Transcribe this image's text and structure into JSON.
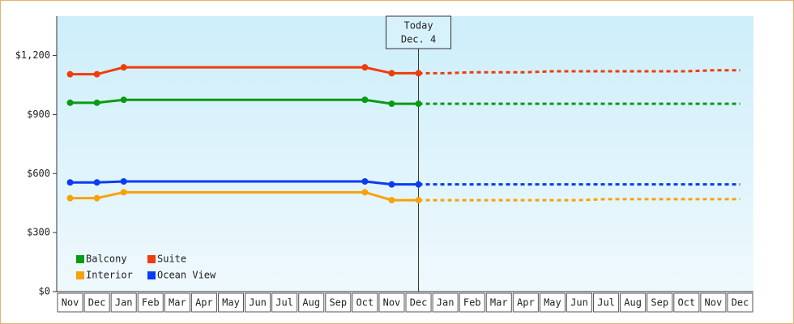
{
  "chart_data": {
    "type": "line",
    "annotation": [
      "Today",
      "Dec. 4"
    ],
    "categories": [
      "Nov",
      "Dec",
      "Jan",
      "Feb",
      "Mar",
      "Apr",
      "May",
      "Jun",
      "Jul",
      "Aug",
      "Sep",
      "Oct",
      "Nov",
      "Dec",
      "Jan",
      "Feb",
      "Mar",
      "Apr",
      "May",
      "Jun",
      "Jul",
      "Aug",
      "Sep",
      "Oct",
      "Nov",
      "Dec"
    ],
    "series": [
      {
        "name": "Balcony",
        "color": "#0a9a14",
        "values": [
          960,
          960,
          975,
          975,
          975,
          975,
          975,
          975,
          975,
          975,
          975,
          975,
          955,
          955,
          null,
          null,
          null,
          null,
          null,
          null,
          null,
          null,
          null,
          null,
          null,
          null
        ],
        "forecast": [
          null,
          null,
          null,
          null,
          null,
          null,
          null,
          null,
          null,
          null,
          null,
          null,
          null,
          955,
          955,
          955,
          955,
          955,
          955,
          955,
          955,
          955,
          955,
          955,
          955,
          955
        ]
      },
      {
        "name": "Suite",
        "color": "#f03c0a",
        "values": [
          1105,
          1105,
          1140,
          1140,
          1140,
          1140,
          1140,
          1140,
          1140,
          1140,
          1140,
          1140,
          1110,
          1110,
          null,
          null,
          null,
          null,
          null,
          null,
          null,
          null,
          null,
          null,
          null,
          null
        ],
        "forecast": [
          null,
          null,
          null,
          null,
          null,
          null,
          null,
          null,
          null,
          null,
          null,
          null,
          null,
          1110,
          1110,
          1115,
          1115,
          1115,
          1120,
          1120,
          1120,
          1120,
          1120,
          1120,
          1125,
          1125
        ]
      },
      {
        "name": "Interior",
        "color": "#f8a20a",
        "values": [
          475,
          475,
          505,
          505,
          505,
          505,
          505,
          505,
          505,
          505,
          505,
          505,
          465,
          465,
          null,
          null,
          null,
          null,
          null,
          null,
          null,
          null,
          null,
          null,
          null,
          null
        ],
        "forecast": [
          null,
          null,
          null,
          null,
          null,
          null,
          null,
          null,
          null,
          null,
          null,
          null,
          null,
          465,
          465,
          465,
          465,
          465,
          465,
          465,
          470,
          470,
          470,
          470,
          470,
          470
        ]
      },
      {
        "name": "Ocean View",
        "color": "#0a3cf0",
        "values": [
          555,
          555,
          560,
          560,
          560,
          560,
          560,
          560,
          560,
          560,
          560,
          560,
          545,
          545,
          null,
          null,
          null,
          null,
          null,
          null,
          null,
          null,
          null,
          null,
          null,
          null
        ],
        "forecast": [
          null,
          null,
          null,
          null,
          null,
          null,
          null,
          null,
          null,
          null,
          null,
          null,
          null,
          545,
          545,
          545,
          545,
          545,
          545,
          545,
          545,
          545,
          545,
          545,
          545,
          545
        ]
      }
    ],
    "ylim": [
      0,
      1400
    ],
    "yticks": [
      {
        "value": 0,
        "label": "$0"
      },
      {
        "value": 300,
        "label": "$300"
      },
      {
        "value": 600,
        "label": "$600"
      },
      {
        "value": 900,
        "label": "$900"
      },
      {
        "value": 1200,
        "label": "$1,200"
      }
    ]
  }
}
